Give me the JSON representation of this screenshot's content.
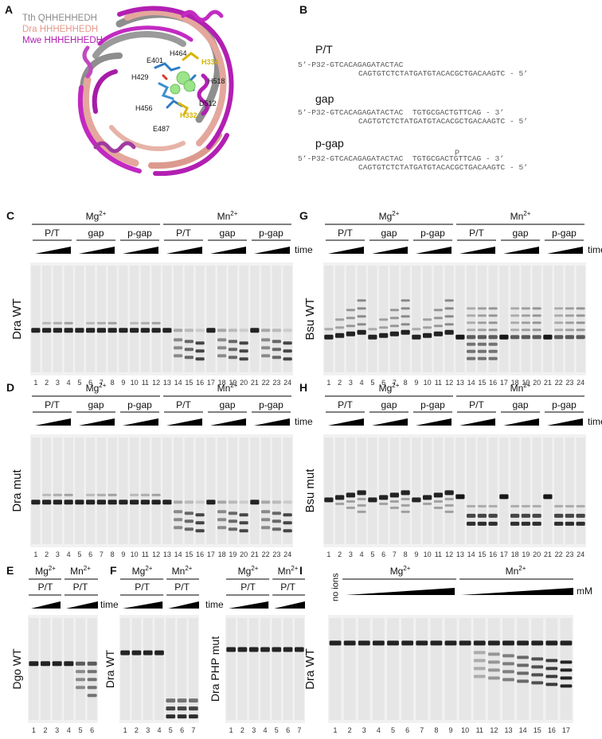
{
  "panelA": {
    "letter": "A",
    "legend": [
      {
        "text": "Tth QHHEHHEDH",
        "color": "#8c8c8c"
      },
      {
        "text": "Dra HHHEHHEDH",
        "color": "#e59a8c"
      },
      {
        "text": "Mwe HHHEHHEDH",
        "color": "#b01fb0"
      }
    ],
    "residues": [
      {
        "text": "E401",
        "color": "#111111"
      },
      {
        "text": "H464",
        "color": "#111111"
      },
      {
        "text": "H334",
        "color": "#d9b400"
      },
      {
        "text": "H429",
        "color": "#111111"
      },
      {
        "text": "H518",
        "color": "#111111"
      },
      {
        "text": "H456",
        "color": "#111111"
      },
      {
        "text": "D512",
        "color": "#111111"
      },
      {
        "text": "H332",
        "color": "#d9b400"
      },
      {
        "text": "E487",
        "color": "#111111"
      }
    ]
  },
  "panelB": {
    "letter": "B",
    "blocks": [
      {
        "title": "P/T",
        "nick": "",
        "line1": "5’-P32-GTCACAGAGATACTAC",
        "line2": "CAGTGTCTCTATGATGTACACGCTGACAAGTC - 5’"
      },
      {
        "title": "gap",
        "nick": "",
        "line1": "5’-P32-GTCACAGAGATACTAC  TGTGCGACTGTTCAG - 3’",
        "line2": "CAGTGTCTCTATGATGTACACGCTGACAAGTC - 5’"
      },
      {
        "title": "p-gap",
        "nick": "P",
        "line1": "5’-P32-GTCACAGAGATACTAC  TGTGCGACTGTTCAG - 3’",
        "line2": "CAGTGTCTCTATGATGTACACGCTGACAAGTC - 5’"
      }
    ]
  },
  "labels": {
    "mg": "Mg",
    "mn": "Mn",
    "charge": "2+",
    "time": "time",
    "mM": "mM",
    "pt": "P/T",
    "gap": "gap",
    "pgap": "p-gap",
    "noIons": "no ions"
  },
  "gels": {
    "C": {
      "letter": "C",
      "side": "Dra WT",
      "lanes": [
        "1",
        "2",
        "3",
        "4",
        "5",
        "6",
        "7",
        "8",
        "9",
        "10",
        "11",
        "12",
        "13",
        "14",
        "15",
        "16",
        "17",
        "18",
        "19",
        "20",
        "21",
        "22",
        "23",
        "24"
      ]
    },
    "D": {
      "letter": "D",
      "side": "Dra mut",
      "lanes": [
        "1",
        "2",
        "3",
        "4",
        "5",
        "6",
        "7",
        "8",
        "9",
        "10",
        "11",
        "12",
        "13",
        "14",
        "15",
        "16",
        "17",
        "18",
        "19",
        "20",
        "21",
        "22",
        "23",
        "24"
      ]
    },
    "G": {
      "letter": "G",
      "side": "Bsu WT",
      "lanes": [
        "1",
        "2",
        "3",
        "4",
        "5",
        "6",
        "7",
        "8",
        "9",
        "10",
        "11",
        "12",
        "13",
        "14",
        "15",
        "16",
        "17",
        "18",
        "19",
        "20",
        "21",
        "22",
        "23",
        "24"
      ]
    },
    "H": {
      "letter": "H",
      "side": "Bsu mut",
      "lanes": [
        "1",
        "2",
        "3",
        "4",
        "5",
        "6",
        "7",
        "8",
        "9",
        "10",
        "11",
        "12",
        "13",
        "14",
        "15",
        "16",
        "17",
        "18",
        "19",
        "20",
        "21",
        "22",
        "23",
        "24"
      ]
    },
    "E": {
      "letter": "E",
      "side": "Dgo WT",
      "lanes": [
        "1",
        "2",
        "3",
        "4",
        "5",
        "6"
      ]
    },
    "F": {
      "letter": "F",
      "side": "Dra WT",
      "side2": "Dra PHP mut",
      "lanes": [
        "1",
        "2",
        "3",
        "4",
        "5",
        "6",
        "7"
      ],
      "lanes2": [
        "1",
        "2",
        "3",
        "4",
        "5",
        "6",
        "7"
      ]
    },
    "I": {
      "letter": "I",
      "side": "Dra WT",
      "lanes": [
        "1",
        "2",
        "3",
        "4",
        "5",
        "6",
        "7",
        "8",
        "9",
        "10",
        "11",
        "12",
        "13",
        "14",
        "15",
        "16",
        "17"
      ]
    }
  }
}
